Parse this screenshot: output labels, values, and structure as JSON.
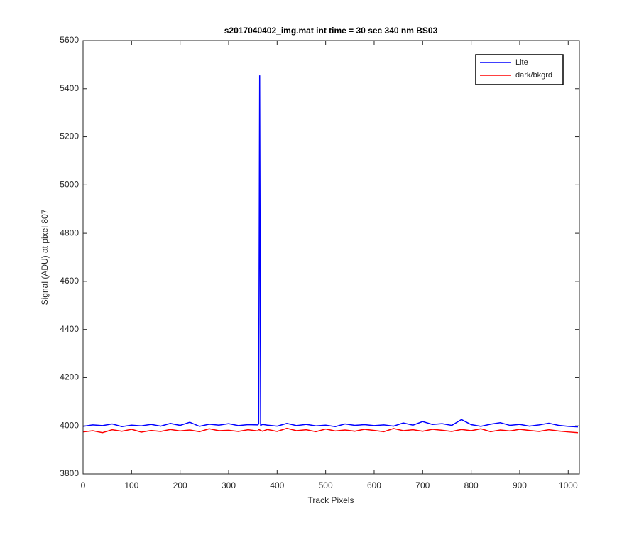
{
  "chart_data": {
    "type": "line",
    "title": "s2017040402_img.mat int time = 30 sec  340 nm BS03",
    "x_label": "Track Pixels",
    "y_label": "Signal (ADU) at pixel 807",
    "x": [
      0,
      20,
      40,
      60,
      80,
      100,
      120,
      140,
      160,
      180,
      200,
      220,
      240,
      260,
      280,
      300,
      320,
      340,
      360,
      362,
      364,
      366,
      370,
      380,
      400,
      420,
      440,
      460,
      480,
      500,
      520,
      540,
      560,
      580,
      600,
      620,
      640,
      660,
      680,
      700,
      720,
      740,
      760,
      780,
      800,
      820,
      840,
      860,
      880,
      900,
      920,
      940,
      960,
      980,
      1000,
      1020
    ],
    "series": [
      {
        "name": "Lite",
        "color": "#0000ff",
        "values": [
          3998,
          4004,
          4001,
          4008,
          3997,
          4003,
          4000,
          4006,
          3999,
          4010,
          4002,
          4015,
          3998,
          4007,
          4003,
          4009,
          4001,
          4005,
          4004,
          4008,
          5455,
          4002,
          4006,
          4003,
          3999,
          4010,
          4001,
          4006,
          4000,
          4003,
          3997,
          4008,
          4002,
          4005,
          4001,
          4004,
          3999,
          4012,
          4003,
          4018,
          4006,
          4009,
          4002,
          4026,
          4005,
          3998,
          4007,
          4013,
          4002,
          4006,
          3999,
          4004,
          4011,
          4002,
          3998,
          3996
        ]
      },
      {
        "name": "dark/bkgrd",
        "color": "#ff0000",
        "values": [
          3975,
          3980,
          3972,
          3984,
          3978,
          3986,
          3974,
          3981,
          3977,
          3985,
          3979,
          3983,
          3976,
          3988,
          3980,
          3982,
          3977,
          3984,
          3979,
          3986,
          3983,
          3981,
          3978,
          3985,
          3977,
          3990,
          3980,
          3984,
          3976,
          3987,
          3979,
          3983,
          3978,
          3986,
          3981,
          3976,
          3989,
          3980,
          3984,
          3978,
          3986,
          3982,
          3977,
          3985,
          3980,
          3988,
          3976,
          3983,
          3979,
          3986,
          3981,
          3977,
          3984,
          3979,
          3975,
          3972
        ]
      }
    ],
    "xlim": [
      0,
      1023
    ],
    "ylim": [
      3800,
      5600
    ],
    "xticks": [
      0,
      100,
      200,
      300,
      400,
      500,
      600,
      700,
      800,
      900,
      1000
    ],
    "yticks": [
      3800,
      4000,
      4200,
      4400,
      4600,
      4800,
      5000,
      5200,
      5400,
      5600
    ],
    "legend": "northeast"
  }
}
